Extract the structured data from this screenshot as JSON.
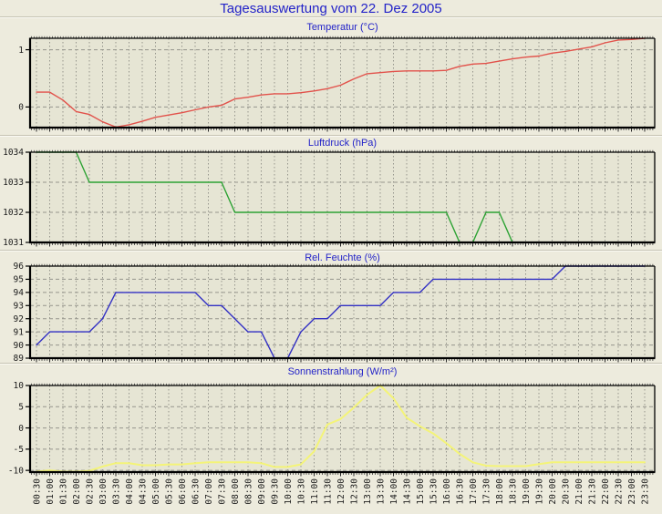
{
  "page": {
    "title": "Tagesauswertung vom 22. Dez 2005"
  },
  "colors": {
    "page_bg": "#EDEBDD",
    "plot_bg": "#E6E5D4",
    "grid": "#95958C",
    "border": "#000000",
    "title_text": "#2323C8",
    "tick_text": "#1A1A1A",
    "temperature": "#E2524B",
    "pressure": "#2CA233",
    "humidity": "#3331C4",
    "radiation": "#F4F478"
  },
  "x_axis": {
    "tick_labels": [
      "00:30",
      "01:00",
      "01:30",
      "02:00",
      "02:30",
      "03:00",
      "03:30",
      "04:00",
      "04:30",
      "05:00",
      "05:30",
      "06:00",
      "06:30",
      "07:00",
      "07:30",
      "08:00",
      "08:30",
      "09:00",
      "09:30",
      "10:00",
      "10:30",
      "11:00",
      "11:30",
      "12:00",
      "12:30",
      "13:00",
      "13:30",
      "14:00",
      "14:30",
      "15:00",
      "15:30",
      "16:00",
      "16:30",
      "17:00",
      "17:30",
      "18:00",
      "18:30",
      "19:00",
      "19:30",
      "20:00",
      "20:30",
      "21:00",
      "21:30",
      "22:00",
      "22:30",
      "23:00",
      "23:30"
    ]
  },
  "chart_data": [
    {
      "type": "line",
      "title": "Temperatur (°C)",
      "series_name": "temperature",
      "color": "#E2524B",
      "ylim": [
        -0.36,
        1.2
      ],
      "yticks": [
        0,
        1
      ],
      "categories_ref": "x_axis.tick_labels",
      "values": [
        0.26,
        0.26,
        0.12,
        -0.08,
        -0.13,
        -0.26,
        -0.35,
        -0.31,
        -0.25,
        -0.18,
        -0.14,
        -0.1,
        -0.05,
        0.0,
        0.03,
        0.14,
        0.17,
        0.21,
        0.23,
        0.23,
        0.25,
        0.28,
        0.32,
        0.38,
        0.49,
        0.58,
        0.6,
        0.62,
        0.63,
        0.63,
        0.63,
        0.64,
        0.71,
        0.75,
        0.76,
        0.8,
        0.84,
        0.87,
        0.89,
        0.94,
        0.97,
        1.01,
        1.05,
        1.12,
        1.17,
        1.18,
        1.2
      ]
    },
    {
      "type": "line",
      "title": "Luftdruck (hPa)",
      "series_name": "pressure",
      "color": "#2CA233",
      "ylim": [
        1031,
        1034
      ],
      "yticks": [
        1031,
        1032,
        1033,
        1034
      ],
      "categories_ref": "x_axis.tick_labels",
      "values": [
        1034,
        1034,
        1034,
        1034,
        1033,
        1033,
        1033,
        1033,
        1033,
        1033,
        1033,
        1033,
        1033,
        1033,
        1033,
        1032,
        1032,
        1032,
        1032,
        1032,
        1032,
        1032,
        1032,
        1032,
        1032,
        1032,
        1032,
        1032,
        1032,
        1032,
        1032,
        1032,
        1031,
        1031,
        1032,
        1032,
        1031,
        1031,
        1031,
        1031,
        1031,
        1031,
        1031,
        1031,
        1031,
        1031,
        1031
      ]
    },
    {
      "type": "line",
      "title": "Rel. Feuchte (%)",
      "series_name": "humidity",
      "color": "#3331C4",
      "ylim": [
        89,
        96
      ],
      "yticks": [
        89,
        90,
        91,
        92,
        93,
        94,
        95,
        96
      ],
      "categories_ref": "x_axis.tick_labels",
      "values": [
        90,
        91,
        91,
        91,
        91,
        92,
        94,
        94,
        94,
        94,
        94,
        94,
        94,
        93,
        93,
        92,
        91,
        91,
        89,
        89,
        91,
        92,
        92,
        93,
        93,
        93,
        93,
        94,
        94,
        94,
        95,
        95,
        95,
        95,
        95,
        95,
        95,
        95,
        95,
        95,
        96,
        96,
        96,
        96,
        96,
        96,
        96
      ]
    },
    {
      "type": "line",
      "title": "Sonnenstrahlung (W/m²)",
      "series_name": "radiation",
      "color": "#F4F478",
      "ylim": [
        -10.4,
        10
      ],
      "yticks": [
        -10,
        -5,
        0,
        5,
        10
      ],
      "categories_ref": "x_axis.tick_labels",
      "values": [
        -10.3,
        -10.0,
        -10.3,
        -10.3,
        -10.1,
        -9.1,
        -8.3,
        -8.3,
        -8.8,
        -8.8,
        -8.6,
        -8.6,
        -8.3,
        -8.1,
        -8.1,
        -8.1,
        -8.1,
        -8.3,
        -9.2,
        -9.2,
        -8.6,
        -5.5,
        0.8,
        2.1,
        4.8,
        7.8,
        10.0,
        7.0,
        2.4,
        0.4,
        -1.3,
        -3.6,
        -6.1,
        -8.1,
        -8.9,
        -9.0,
        -9.0,
        -9.0,
        -8.5,
        -8.1,
        -8.1,
        -8.1,
        -8.1,
        -8.1,
        -8.1,
        -8.1,
        -8.1
      ]
    }
  ]
}
